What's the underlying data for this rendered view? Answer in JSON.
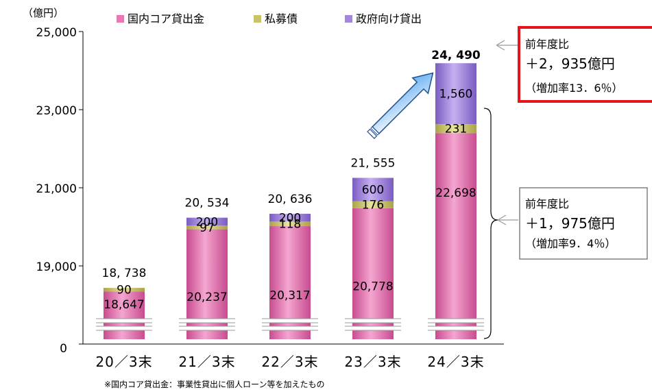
{
  "chart_data": {
    "type": "bar",
    "stacked": true,
    "unit_label": "（億円）",
    "categories": [
      "20／3末",
      "21／3末",
      "22／3末",
      "23／3末",
      "24／3末"
    ],
    "series": [
      {
        "name": "国内コア貸出金",
        "color": "#e678b4",
        "values": [
          18647,
          20237,
          20317,
          20778,
          22698
        ],
        "labels": [
          "18,647",
          "20,237",
          "20,317",
          "20,778",
          "22,698"
        ]
      },
      {
        "name": "私募債",
        "color": "#c8c46c",
        "values": [
          90,
          97,
          118,
          176,
          231
        ],
        "labels": [
          "90",
          "97",
          "118",
          "176",
          "231"
        ]
      },
      {
        "name": "政府向け貸出",
        "color": "#a486e0",
        "values": [
          null,
          200,
          200,
          600,
          1560
        ],
        "labels": [
          "",
          "200",
          "200",
          "600",
          "1,560"
        ]
      }
    ],
    "totals": [
      "18, 738",
      "20, 534",
      "20, 636",
      "21, 555",
      "24, 490"
    ],
    "y_ticks": [
      "25,000",
      "23,000",
      "21,000",
      "19,000",
      "0"
    ],
    "y_tick_values": [
      25000,
      23000,
      21000,
      19000,
      0
    ],
    "axis_break": true,
    "grid": false,
    "legend_position": "top",
    "annotations": [
      {
        "line1": "前年度比",
        "line2": "＋2，935億円",
        "line3": "（増加率13．6％）",
        "highlight": true
      },
      {
        "line1": "前年度比",
        "line2": "＋1，975億円",
        "line3": "（増加率9．4％）",
        "highlight": false
      }
    ],
    "footnote": "※国内コア貸出金：事業性貸出に個人ローン等を加えたもの"
  }
}
